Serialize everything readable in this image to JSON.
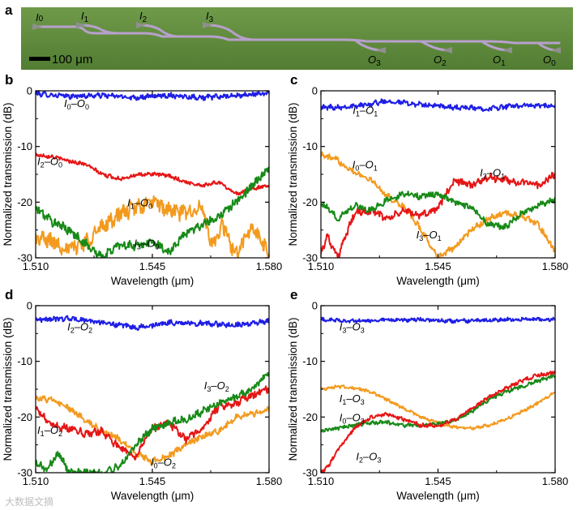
{
  "panel_a": {
    "label": "a",
    "scale_bar": "100 μm",
    "inputs": [
      "I0",
      "I1",
      "I2",
      "I3"
    ],
    "outputs": [
      "O3",
      "O2",
      "O1",
      "O0"
    ],
    "colors": {
      "background": "#5e8a3a",
      "waveguide": "#b59ac8"
    }
  },
  "watermark": "大数据文摘",
  "chart_data": [
    {
      "panel": "b",
      "type": "line",
      "xlabel": "Wavelength (μm)",
      "ylabel": "Normalized transmission (dB)",
      "xlim": [
        1.51,
        1.58
      ],
      "ylim": [
        -30,
        0
      ],
      "xticks": [
        "1.510",
        "1.545",
        "1.580"
      ],
      "yticks": [
        "0",
        "-10",
        "-20",
        "-30"
      ],
      "series": [
        {
          "name": "I0–O0",
          "color": "#1e1ee6",
          "x": [
            1.51,
            1.52,
            1.53,
            1.54,
            1.55,
            1.56,
            1.57,
            1.58
          ],
          "y": [
            -0.5,
            -1.0,
            -0.8,
            -1.2,
            -0.8,
            -1.2,
            -0.9,
            -0.4
          ],
          "noise": 0.4
        },
        {
          "name": "I2–O0",
          "color": "#e61515",
          "x": [
            1.51,
            1.515,
            1.52,
            1.525,
            1.53,
            1.535,
            1.54,
            1.545,
            1.55,
            1.555,
            1.56,
            1.565,
            1.57,
            1.575,
            1.58
          ],
          "y": [
            -11.5,
            -11.8,
            -12.6,
            -13.2,
            -15.0,
            -15.8,
            -15.2,
            -14.9,
            -15.3,
            -16.4,
            -17.0,
            -16.4,
            -18.5,
            -17.6,
            -17.0
          ],
          "noise": 0.3
        },
        {
          "name": "I1–O0",
          "color": "#f39a1e",
          "x": [
            1.51,
            1.515,
            1.52,
            1.525,
            1.53,
            1.535,
            1.54,
            1.545,
            1.55,
            1.555,
            1.56,
            1.563,
            1.566,
            1.57,
            1.575,
            1.58
          ],
          "y": [
            -26.5,
            -27.0,
            -28.5,
            -27.0,
            -24.5,
            -22.2,
            -21.0,
            -20.0,
            -21.5,
            -22.0,
            -21.0,
            -28.5,
            -24.0,
            -29.5,
            -24.5,
            -29.5
          ],
          "noise": 1.3
        },
        {
          "name": "I3–O0",
          "color": "#178a17",
          "x": [
            1.51,
            1.515,
            1.52,
            1.525,
            1.53,
            1.535,
            1.54,
            1.545,
            1.55,
            1.555,
            1.56,
            1.565,
            1.57,
            1.575,
            1.58
          ],
          "y": [
            -21.0,
            -23.5,
            -25.0,
            -27.5,
            -30.0,
            -27.5,
            -28.0,
            -27.0,
            -29.0,
            -25.5,
            -24.0,
            -22.5,
            -20.0,
            -17.0,
            -14.0
          ],
          "noise": 0.7
        }
      ],
      "annotations": [
        {
          "sub1": "0",
          "sub2": "0",
          "x": 1.5185,
          "y": -2.2,
          "series": "I0–O0"
        },
        {
          "sub1": "2",
          "sub2": "0",
          "x": 1.5105,
          "y": -12.6,
          "series": "I2–O0"
        },
        {
          "sub1": "1",
          "sub2": "0",
          "x": 1.5375,
          "y": -20.0,
          "series": "I1–O0"
        },
        {
          "sub1": "3",
          "sub2": "0",
          "x": 1.5395,
          "y": -27.3,
          "series": "I3–O0"
        }
      ]
    },
    {
      "panel": "c",
      "type": "line",
      "xlabel": "Wavelength (μm)",
      "ylabel": "Normalized transmission (dB)",
      "xlim": [
        1.51,
        1.58
      ],
      "ylim": [
        -30,
        0
      ],
      "xticks": [
        "1.510",
        "1.545",
        "1.580"
      ],
      "yticks": [
        "0",
        "-10",
        "-20",
        "-30"
      ],
      "series": [
        {
          "name": "I1–O1",
          "color": "#1e1ee6",
          "x": [
            1.51,
            1.52,
            1.53,
            1.54,
            1.55,
            1.56,
            1.57,
            1.58
          ],
          "y": [
            -3.0,
            -2.8,
            -1.8,
            -2.5,
            -3.0,
            -3.2,
            -2.6,
            -2.8
          ],
          "noise": 0.4
        },
        {
          "name": "I0–O1",
          "color": "#f39a1e",
          "x": [
            1.51,
            1.515,
            1.52,
            1.525,
            1.53,
            1.535,
            1.54,
            1.545,
            1.55,
            1.555,
            1.56,
            1.565,
            1.57,
            1.575,
            1.58
          ],
          "y": [
            -11.5,
            -12.5,
            -14.5,
            -16.0,
            -19.0,
            -21.0,
            -25.0,
            -30.0,
            -28.0,
            -25.0,
            -23.0,
            -22.0,
            -22.5,
            -24.0,
            -29.0
          ],
          "noise": 0.5
        },
        {
          "name": "I2–O1",
          "color": "#e61515",
          "x": [
            1.51,
            1.512,
            1.515,
            1.52,
            1.525,
            1.53,
            1.535,
            1.54,
            1.545,
            1.55,
            1.555,
            1.56,
            1.565,
            1.57,
            1.575,
            1.58
          ],
          "y": [
            -29.0,
            -26.0,
            -30.0,
            -22.0,
            -21.5,
            -23.0,
            -21.5,
            -22.5,
            -21.0,
            -16.0,
            -17.0,
            -15.5,
            -16.0,
            -16.5,
            -17.0,
            -15.0
          ],
          "noise": 0.6
        },
        {
          "name": "I3–O1",
          "color": "#178a17",
          "x": [
            1.51,
            1.515,
            1.52,
            1.525,
            1.53,
            1.535,
            1.54,
            1.545,
            1.55,
            1.555,
            1.56,
            1.565,
            1.57,
            1.575,
            1.58
          ],
          "y": [
            -20.0,
            -23.0,
            -20.5,
            -21.5,
            -19.5,
            -18.5,
            -19.0,
            -18.5,
            -20.0,
            -21.0,
            -24.0,
            -24.5,
            -22.0,
            -20.5,
            -19.5
          ],
          "noise": 0.5
        }
      ],
      "annotations": [
        {
          "sub1": "1",
          "sub2": "1",
          "x": 1.5195,
          "y": -3.4,
          "series": "I1–O1"
        },
        {
          "sub1": "0",
          "sub2": "1",
          "x": 1.5194,
          "y": -13.2,
          "series": "I0–O1"
        },
        {
          "sub1": "2",
          "sub2": "1",
          "x": 1.5575,
          "y": -14.6,
          "series": "I2–O1"
        },
        {
          "sub1": "3",
          "sub2": "1",
          "x": 1.5385,
          "y": -25.8,
          "series": "I3–O1"
        }
      ]
    },
    {
      "panel": "d",
      "type": "line",
      "xlabel": "Wavelength (μm)",
      "ylabel": "Normalized transmission (dB)",
      "xlim": [
        1.51,
        1.58
      ],
      "ylim": [
        -30,
        0
      ],
      "xticks": [
        "1.510",
        "1.545",
        "1.580"
      ],
      "yticks": [
        "0",
        "-10",
        "-20",
        "-30"
      ],
      "series": [
        {
          "name": "I2–O2",
          "color": "#1e1ee6",
          "x": [
            1.51,
            1.52,
            1.53,
            1.54,
            1.55,
            1.56,
            1.57,
            1.58
          ],
          "y": [
            -2.5,
            -2.3,
            -3.0,
            -4.0,
            -3.0,
            -3.2,
            -3.5,
            -2.8
          ],
          "noise": 0.4
        },
        {
          "name": "I0–O2",
          "color": "#f39a1e",
          "x": [
            1.51,
            1.515,
            1.52,
            1.525,
            1.53,
            1.535,
            1.54,
            1.545,
            1.55,
            1.555,
            1.56,
            1.565,
            1.57,
            1.575,
            1.58
          ],
          "y": [
            -16.5,
            -17.0,
            -18.5,
            -20.5,
            -22.5,
            -24.0,
            -26.5,
            -28.0,
            -27.0,
            -25.0,
            -23.5,
            -22.5,
            -20.0,
            -19.5,
            -18.5
          ],
          "noise": 0.5
        },
        {
          "name": "I1–O2",
          "color": "#e61515",
          "x": [
            1.51,
            1.515,
            1.52,
            1.525,
            1.53,
            1.535,
            1.54,
            1.545,
            1.55,
            1.555,
            1.56,
            1.565,
            1.57,
            1.575,
            1.58
          ],
          "y": [
            -18.5,
            -21.5,
            -22.0,
            -23.0,
            -22.5,
            -25.5,
            -27.0,
            -22.0,
            -21.0,
            -24.0,
            -22.0,
            -18.0,
            -17.5,
            -16.0,
            -15.0
          ],
          "noise": 0.6
        },
        {
          "name": "I3–O2",
          "color": "#178a17",
          "x": [
            1.51,
            1.513,
            1.517,
            1.52,
            1.525,
            1.53,
            1.535,
            1.54,
            1.545,
            1.55,
            1.555,
            1.56,
            1.565,
            1.57,
            1.575,
            1.58
          ],
          "y": [
            -28.0,
            -29.5,
            -26.5,
            -30.0,
            -30.0,
            -30.0,
            -29.0,
            -25.0,
            -22.0,
            -21.0,
            -20.5,
            -19.0,
            -17.5,
            -16.5,
            -15.0,
            -12.0
          ],
          "noise": 0.6
        }
      ],
      "annotations": [
        {
          "sub1": "2",
          "sub2": "2",
          "x": 1.5195,
          "y": -3.7,
          "series": "I2–O2"
        },
        {
          "sub1": "1",
          "sub2": "2",
          "x": 1.5105,
          "y": -22.3,
          "series": "I1–O2"
        },
        {
          "sub1": "3",
          "sub2": "2",
          "x": 1.5605,
          "y": -14.3,
          "series": "I3–O2"
        },
        {
          "sub1": "0",
          "sub2": "2",
          "x": 1.5445,
          "y": -28.0,
          "series": "I0–O2"
        }
      ]
    },
    {
      "panel": "e",
      "type": "line",
      "xlabel": "Wavelength (μm)",
      "ylabel": "Normalized transmission (dB)",
      "xlim": [
        1.51,
        1.58
      ],
      "ylim": [
        -30,
        0
      ],
      "xticks": [
        "1.510",
        "1.545",
        "1.580"
      ],
      "yticks": [
        "0",
        "-10",
        "-20",
        "-30"
      ],
      "series": [
        {
          "name": "I3–O3",
          "color": "#1e1ee6",
          "x": [
            1.51,
            1.52,
            1.53,
            1.54,
            1.55,
            1.56,
            1.57,
            1.58
          ],
          "y": [
            -2.5,
            -2.8,
            -2.6,
            -2.5,
            -2.8,
            -2.6,
            -2.4,
            -2.5
          ],
          "noise": 0.3
        },
        {
          "name": "I1–O3",
          "color": "#f39a1e",
          "x": [
            1.51,
            1.515,
            1.52,
            1.525,
            1.53,
            1.535,
            1.54,
            1.545,
            1.55,
            1.555,
            1.56,
            1.565,
            1.57,
            1.575,
            1.58
          ],
          "y": [
            -15.0,
            -14.5,
            -14.8,
            -15.5,
            -17.0,
            -18.5,
            -20.0,
            -21.0,
            -21.8,
            -22.0,
            -21.5,
            -20.5,
            -19.0,
            -17.5,
            -15.5
          ],
          "noise": 0.25
        },
        {
          "name": "I0–O3",
          "color": "#178a17",
          "x": [
            1.51,
            1.515,
            1.52,
            1.525,
            1.53,
            1.535,
            1.54,
            1.545,
            1.55,
            1.555,
            1.56,
            1.565,
            1.57,
            1.575,
            1.58
          ],
          "y": [
            -22.5,
            -22.0,
            -21.5,
            -21.0,
            -21.0,
            -21.5,
            -21.5,
            -21.2,
            -20.5,
            -19.0,
            -17.0,
            -15.5,
            -14.5,
            -13.5,
            -12.5
          ],
          "noise": 0.3
        },
        {
          "name": "I2–O3",
          "color": "#e61515",
          "x": [
            1.51,
            1.512,
            1.515,
            1.52,
            1.525,
            1.53,
            1.535,
            1.54,
            1.545,
            1.55,
            1.555,
            1.56,
            1.565,
            1.57,
            1.575,
            1.58
          ],
          "y": [
            -30.0,
            -29.0,
            -26.0,
            -22.0,
            -20.0,
            -19.5,
            -20.5,
            -21.5,
            -21.5,
            -20.5,
            -18.5,
            -16.5,
            -15.0,
            -13.5,
            -12.5,
            -12.0
          ],
          "noise": 0.3
        }
      ],
      "annotations": [
        {
          "sub1": "3",
          "sub2": "3",
          "x": 1.5155,
          "y": -3.7,
          "series": "I3–O3"
        },
        {
          "sub1": "1",
          "sub2": "3",
          "x": 1.5155,
          "y": -16.6,
          "series": "I1–O3"
        },
        {
          "sub1": "0",
          "sub2": "3",
          "x": 1.5155,
          "y": -20.0,
          "series": "I0–O3"
        },
        {
          "sub1": "2",
          "sub2": "3",
          "x": 1.5205,
          "y": -27.0,
          "series": "I2–O3"
        }
      ]
    }
  ]
}
